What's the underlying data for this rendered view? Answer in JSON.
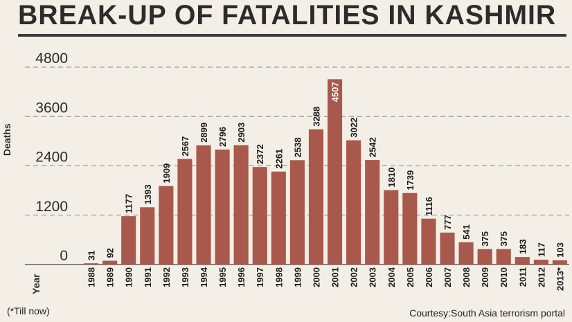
{
  "chart_data": {
    "type": "bar",
    "title": "BREAK-UP OF FATALITIES IN KASHMIR",
    "xlabel": "Year",
    "ylabel": "Deaths",
    "categories": [
      "1988",
      "1989",
      "1990",
      "1991",
      "1992",
      "1993",
      "1994",
      "1995",
      "1996",
      "1997",
      "1998",
      "1999",
      "2000",
      "2001",
      "2002",
      "2003",
      "2004",
      "2005",
      "2006",
      "2007",
      "2008",
      "2009",
      "2010",
      "2011",
      "2012",
      "2013*"
    ],
    "values": [
      31,
      92,
      1177,
      1393,
      1909,
      2567,
      2899,
      2796,
      2903,
      2372,
      2261,
      2538,
      3288,
      4507,
      3022,
      2542,
      1810,
      1739,
      1116,
      777,
      541,
      375,
      375,
      183,
      117,
      103
    ],
    "y_ticks": [
      0,
      1200,
      2400,
      3600,
      4800
    ],
    "ylim": [
      0,
      4800
    ],
    "grid": true,
    "grid_style": "dashed",
    "bar_color": "#a9584c",
    "highlight_index": 13,
    "highlight_label_color": "#ffffff"
  },
  "footnote": "(*Till now)",
  "source": "Courtesy:South Asia terrorism portal"
}
